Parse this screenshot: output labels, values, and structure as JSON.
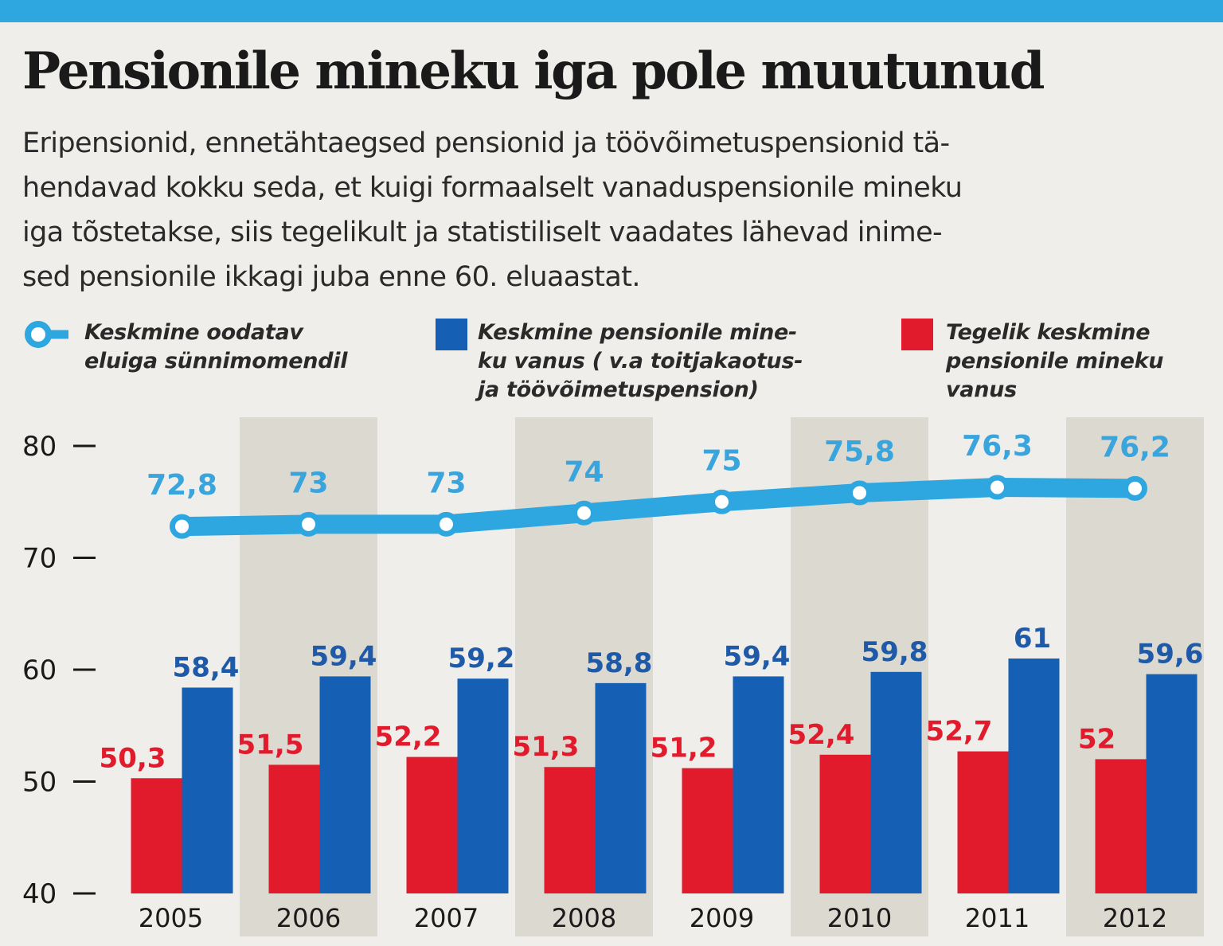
{
  "header": {
    "title": "Pensionile mineku iga pole muutunud",
    "subtitle_lines": [
      "Eripensionid, ennetähtaegsed pensionid ja töövõimetuspensionid tä-",
      "hendavad kokku seda, et kuigi formaalselt vanaduspensionile mineku",
      "iga tõstetakse, siis tegelikult ja statistiliselt vaadates lähevad inime-",
      "sed pensionile ikkagi juba enne 60. eluaastat."
    ]
  },
  "legend": {
    "life_expectancy": [
      "Keskmine oodatav",
      "eluiga sünnimomendil"
    ],
    "avg_retirement": [
      "Keskmine pensionile mine-",
      "ku vanus ( v.a toitjakaotus-",
      "ja töövõimetuspension)"
    ],
    "actual_retirement": [
      "Tegelik keskmine",
      "pensionile mineku",
      "vanus"
    ]
  },
  "colors": {
    "top_bar": "#2ea7e0",
    "line": "#2ea7e0",
    "line_label": "#3aa4dc",
    "blue_bar": "#1560b4",
    "blue_label": "#1e5aa8",
    "red_bar": "#e21b2c",
    "red_label": "#e21b2c",
    "band": "#dcd9d1"
  },
  "chart_data": {
    "type": "bar",
    "title": "Pensionile mineku iga pole muutunud",
    "xlabel": "",
    "ylabel": "",
    "categories": [
      "2005",
      "2006",
      "2007",
      "2008",
      "2009",
      "2010",
      "2011",
      "2012"
    ],
    "ylim": [
      40,
      80
    ],
    "yticks": [
      {
        "value": 80,
        "label": "80"
      },
      {
        "value": 70,
        "label": "70"
      },
      {
        "value": 60,
        "label": "60"
      },
      {
        "value": 50,
        "label": "50"
      },
      {
        "value": 40,
        "label": "40"
      }
    ],
    "series": [
      {
        "name": "Keskmine oodatav eluiga sünnimomendil",
        "kind": "line",
        "values": [
          72.8,
          73,
          73,
          74,
          75,
          75.8,
          76.3,
          76.2
        ],
        "labels": [
          "72,8",
          "73",
          "73",
          "74",
          "75",
          "75,8",
          "76,3",
          "76,2"
        ]
      },
      {
        "name": "Keskmine pensionile mineku vanus ( v.a toitjakaotus- ja töövõimetuspension)",
        "kind": "bar",
        "values": [
          58.4,
          59.4,
          59.2,
          58.8,
          59.4,
          59.8,
          61,
          59.6
        ],
        "labels": [
          "58,4",
          "59,4",
          "59,2",
          "58,8",
          "59,4",
          "59,8",
          "61",
          "59,6"
        ]
      },
      {
        "name": "Tegelik keskmine pensionile mineku vanus",
        "kind": "bar",
        "values": [
          50.3,
          51.5,
          52.2,
          51.3,
          51.2,
          52.4,
          52.7,
          52
        ],
        "labels": [
          "50,3",
          "51,5",
          "52,2",
          "51,3",
          "51,2",
          "52,4",
          "52,7",
          "52"
        ]
      }
    ]
  }
}
